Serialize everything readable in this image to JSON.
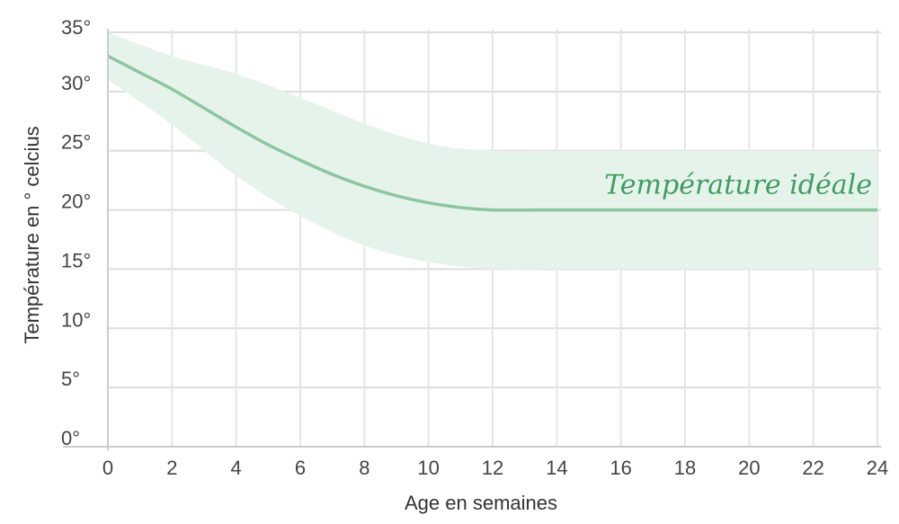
{
  "chart_data": {
    "type": "area",
    "xlabel": "Age en semaines",
    "ylabel": "Température en ° celcius",
    "xlim": [
      0,
      24
    ],
    "ylim": [
      0,
      35
    ],
    "x_ticks": [
      "0",
      "2",
      "4",
      "6",
      "8",
      "10",
      "12",
      "14",
      "16",
      "18",
      "20",
      "22",
      "24"
    ],
    "y_ticks": [
      "0°",
      "5°",
      "10°",
      "15°",
      "20°",
      "25°",
      "30°",
      "35°"
    ],
    "grid": true,
    "series": [
      {
        "kind": "line",
        "x": [
          0,
          1,
          2,
          3,
          4,
          5,
          6,
          7,
          8,
          9,
          10,
          11,
          12,
          14,
          16,
          18,
          20,
          22,
          24
        ],
        "values": [
          33,
          31.6,
          30.2,
          28.6,
          27,
          25.5,
          24.2,
          23,
          22,
          21.2,
          20.6,
          20.2,
          20,
          20,
          20,
          20,
          20,
          20,
          20
        ]
      },
      {
        "kind": "band",
        "x": [
          0,
          2,
          4,
          6,
          8,
          10,
          12,
          14,
          16,
          18,
          20,
          22,
          24
        ],
        "upper": [
          35,
          33,
          31.5,
          29.5,
          27.3,
          25.6,
          25,
          25,
          25,
          25,
          25,
          25,
          25
        ],
        "lower": [
          31,
          27.2,
          22.9,
          19.5,
          17,
          15.6,
          15,
          15,
          15,
          15,
          15,
          15,
          15
        ]
      }
    ],
    "annotation": {
      "text": "Température idéale",
      "x": 24,
      "y": 22.2
    },
    "colors": {
      "line": "#8cc6a0",
      "band": "#e6f3ea",
      "annotation": "#3f9d62",
      "grid": "#dddddd"
    }
  }
}
